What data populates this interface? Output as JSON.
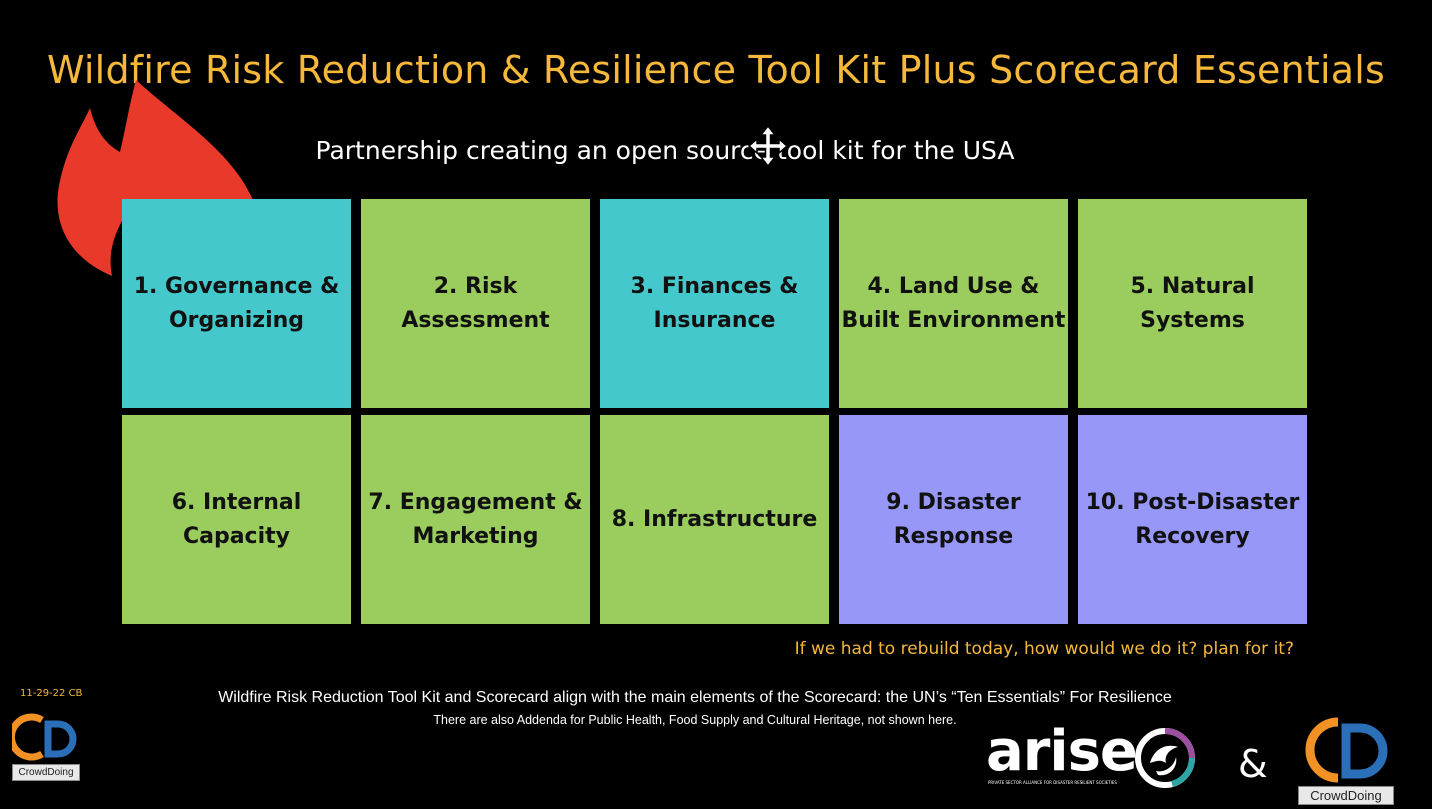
{
  "title": "Wildfire Risk Reduction & Resilience Tool Kit Plus Scorecard Essentials",
  "subtitle": "Partnership creating an open source tool kit for the USA",
  "tiles": [
    {
      "label": "1. Governance &\nOrganizing",
      "color": "#45C8CB"
    },
    {
      "label": "2. Risk\nAssessment",
      "color": "#9ACD5D"
    },
    {
      "label": "3. Finances &\nInsurance",
      "color": "#45C8CB"
    },
    {
      "label": "4. Land Use &\nBuilt Environment",
      "color": "#9ACD5D"
    },
    {
      "label": "5. Natural\nSystems",
      "color": "#9ACD5D"
    },
    {
      "label": "6. Internal\nCapacity",
      "color": "#9ACD5D"
    },
    {
      "label": "7. Engagement &\nMarketing",
      "color": "#9ACD5D"
    },
    {
      "label": "8. Infrastructure",
      "color": "#9ACD5D"
    },
    {
      "label": "9. Disaster\nResponse",
      "color": "#9697F7"
    },
    {
      "label": "10. Post-Disaster\nRecovery",
      "color": "#9697F7"
    }
  ],
  "question": "If we had to rebuild today, how would we do it? plan for it?",
  "date_stamp": "11-29-22 CB",
  "alignment_note": "Wildfire Risk Reduction Tool Kit and Scorecard align with the main elements of the Scorecard: the UN’s “Ten Essentials” For Resilience",
  "addenda_note": "There are also Addenda for Public Health, Food Supply and Cultural Heritage, not shown here.",
  "logos": {
    "crowddoing_small_label": "CrowdDoing",
    "crowddoing_large_label": "CrowdDoing",
    "arise_word": "arise",
    "arise_tagline": "PRIVATE SECTOR ALLIANCE FOR DISASTER RESILIENT SOCIETIES",
    "ampersand": "&"
  },
  "colors": {
    "title": "#F5B83B",
    "flame": "#E8392A",
    "cd_orange": "#F39224",
    "cd_blue": "#2B6FB8"
  },
  "icons": [
    "flame-icon",
    "move-cursor-icon",
    "crowddoing-logo",
    "arise-logo"
  ]
}
